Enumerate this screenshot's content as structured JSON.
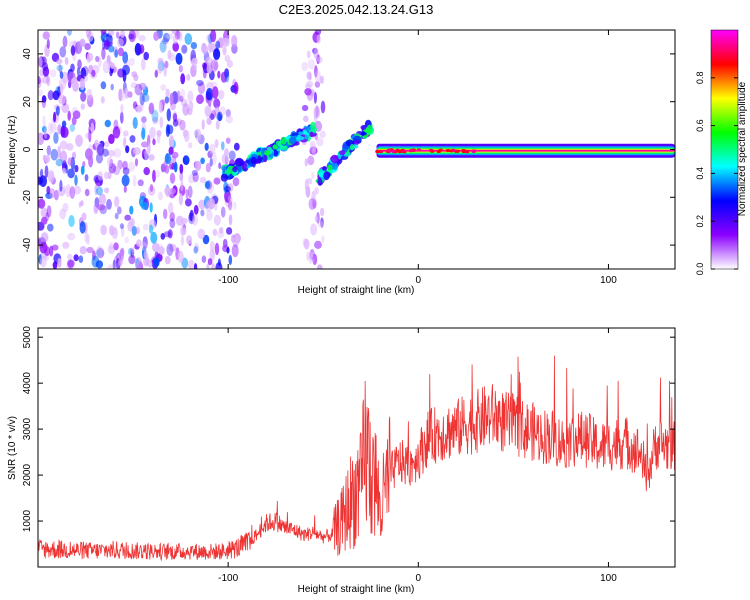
{
  "figure": {
    "title": "C2E3.2025.042.13.24.G13"
  },
  "chart_data": [
    {
      "type": "heatmap",
      "xlabel": "Height of straight line (km)",
      "ylabel": "Frequency (Hz)",
      "xlim": [
        -200,
        135
      ],
      "ylim": [
        -50,
        50
      ],
      "xticks": [
        -100,
        0,
        100
      ],
      "yticks": [
        -40,
        -20,
        0,
        20,
        40
      ],
      "colorbar": {
        "label": "Normalized spectral amplitude",
        "range": [
          0,
          1
        ],
        "ticks": [
          0.0,
          0.2,
          0.4,
          0.6,
          0.8
        ],
        "colormap": [
          "#ffffff",
          "#8b00ff",
          "#0000ff",
          "#00ffff",
          "#00ff00",
          "#ffff00",
          "#ff0000",
          "#ff00ff"
        ]
      },
      "regions": [
        {
          "label": "noise",
          "x": [
            -200,
            -95
          ],
          "y": [
            -50,
            50
          ],
          "amplitude": 0.15
        },
        {
          "label": "noise",
          "x": [
            -60,
            -50
          ],
          "y": [
            -50,
            50
          ],
          "amplitude": 0.08
        },
        {
          "label": "rising trace",
          "x": [
            -102,
            -55
          ],
          "y": [
            -10,
            8
          ],
          "amplitude": 0.4
        },
        {
          "label": "rising trace",
          "x": [
            -52,
            -25
          ],
          "y": [
            -12,
            10
          ],
          "amplitude": 0.4
        },
        {
          "label": "carrier",
          "x": [
            -22,
            135
          ],
          "y": [
            -2,
            1
          ],
          "amplitude": 0.95
        }
      ],
      "grid": false
    },
    {
      "type": "line",
      "xlabel": "Height of straight line (km)",
      "ylabel": "SNR (10 * v/v)",
      "xlim": [
        -200,
        135
      ],
      "ylim": [
        0,
        5200
      ],
      "xticks": [
        -100,
        0,
        100
      ],
      "yticks": [
        1000,
        2000,
        3000,
        4000,
        5000
      ],
      "color": "#ee3333",
      "series": [
        {
          "x": [
            -200,
            -190,
            -180,
            -170,
            -160,
            -150,
            -140,
            -130,
            -120,
            -110,
            -100,
            -95,
            -90,
            -85,
            -80,
            -75,
            -70,
            -65,
            -60,
            -55,
            -50,
            -45,
            -40,
            -35,
            -30,
            -28,
            -25,
            -22,
            -20,
            -18,
            -15,
            -10,
            -5,
            0,
            5,
            10,
            15,
            20,
            25,
            30,
            35,
            40,
            45,
            50,
            55,
            60,
            65,
            70,
            75,
            80,
            85,
            90,
            95,
            100,
            105,
            110,
            115,
            118,
            120,
            125,
            130,
            135
          ],
          "values": [
            400,
            380,
            360,
            350,
            370,
            350,
            340,
            330,
            340,
            330,
            350,
            420,
            500,
            700,
            950,
            1000,
            850,
            800,
            700,
            750,
            650,
            700,
            1000,
            1500,
            1700,
            2600,
            2100,
            1800,
            1200,
            1500,
            2000,
            2300,
            2200,
            2400,
            2800,
            2900,
            2950,
            3000,
            3100,
            3150,
            3250,
            3300,
            3150,
            3100,
            3000,
            2950,
            2850,
            2850,
            2700,
            2750,
            2800,
            2750,
            2600,
            2650,
            2700,
            2700,
            2550,
            2400,
            1900,
            2700,
            2650,
            2600
          ]
        }
      ],
      "grid": false
    }
  ]
}
